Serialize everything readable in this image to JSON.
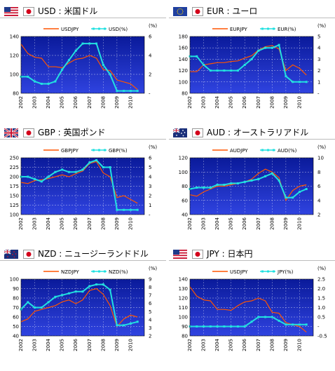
{
  "panels": [
    {
      "title": "USD : 米国ドル",
      "flag": "us-flag-icon",
      "chart_data": {
        "type": "line",
        "x": [
          2002,
          2002.5,
          2003,
          2003.5,
          2004,
          2004.5,
          2005,
          2005.5,
          2006,
          2006.5,
          2007,
          2007.5,
          2008,
          2008.5,
          2009,
          2009.5,
          2010,
          2010.5
        ],
        "series": [
          {
            "name": "USDJPY",
            "axis": "left",
            "color": "#ff5500",
            "values": [
              132,
              122,
              118,
              117,
              108,
              108,
              107,
              112,
              116,
              117,
              120,
              117,
              105,
              104,
              94,
              92,
              90,
              84
            ]
          },
          {
            "name": "USD(%)",
            "axis": "right",
            "color": "#22e0e0",
            "values": [
              1.75,
              1.75,
              1.25,
              1.0,
              1.0,
              1.25,
              2.5,
              3.5,
              4.5,
              5.25,
              5.25,
              5.25,
              3.0,
              2.0,
              0.25,
              0.25,
              0.25,
              0.25
            ]
          }
        ],
        "ylim": [
          80,
          140
        ],
        "yticks": [
          80,
          100,
          120,
          140
        ],
        "ylim_right": [
          0,
          6
        ],
        "yticks_right": [
          "-",
          "2",
          "4",
          "6"
        ],
        "xticks": [
          "2002",
          "2003",
          "2004",
          "2005",
          "2006",
          "2007",
          "2008",
          "2009",
          "2010"
        ]
      }
    },
    {
      "title": "EUR : ユーロ",
      "flag": "eu-flag-icon",
      "chart_data": {
        "type": "line",
        "x": [
          2002,
          2002.5,
          2003,
          2003.5,
          2004,
          2004.5,
          2005,
          2005.5,
          2006,
          2006.5,
          2007,
          2007.5,
          2008,
          2008.5,
          2009,
          2009.5,
          2010,
          2010.5
        ],
        "series": [
          {
            "name": "EURJPY",
            "axis": "left",
            "color": "#ff5500",
            "values": [
              118,
              118,
              130,
              132,
              134,
              134,
              136,
              137,
              142,
              146,
              156,
              162,
              164,
              158,
              120,
              130,
              124,
              112
            ]
          },
          {
            "name": "EUR(%)",
            "axis": "right",
            "color": "#22e0e0",
            "values": [
              3.25,
              3.25,
              2.5,
              2.0,
              2.0,
              2.0,
              2.0,
              2.0,
              2.5,
              3.0,
              3.75,
              4.0,
              4.0,
              4.25,
              1.5,
              1.0,
              1.0,
              1.0
            ]
          }
        ],
        "ylim": [
          80,
          180
        ],
        "yticks": [
          80,
          100,
          120,
          140,
          160,
          180
        ],
        "ylim_right": [
          0,
          5
        ],
        "yticks_right": [
          "-",
          "1",
          "2",
          "3",
          "4",
          "5"
        ],
        "xticks": [
          "2002",
          "2003",
          "2004",
          "2005",
          "2006",
          "2007",
          "2008",
          "2009",
          "2010"
        ]
      }
    },
    {
      "title": "GBP : 英国ポンド",
      "flag": "uk-flag-icon",
      "chart_data": {
        "type": "line",
        "x": [
          2002,
          2002.5,
          2003,
          2003.5,
          2004,
          2004.5,
          2005,
          2005.5,
          2006,
          2006.5,
          2007,
          2007.5,
          2008,
          2008.5,
          2009,
          2009.5,
          2010,
          2010.5
        ],
        "series": [
          {
            "name": "GBPJPY",
            "axis": "left",
            "color": "#ff5500",
            "values": [
              185,
              182,
              190,
              192,
              195,
              200,
              205,
              200,
              208,
              215,
              235,
              240,
              210,
              200,
              145,
              150,
              140,
              130
            ]
          },
          {
            "name": "GBP(%)",
            "axis": "right",
            "color": "#22e0e0",
            "values": [
              4.0,
              4.0,
              3.75,
              3.5,
              4.0,
              4.5,
              4.75,
              4.5,
              4.5,
              4.75,
              5.5,
              5.75,
              5.0,
              5.0,
              0.5,
              0.5,
              0.5,
              0.5
            ]
          }
        ],
        "ylim": [
          100,
          250
        ],
        "yticks": [
          100,
          125,
          150,
          175,
          200,
          225,
          250
        ],
        "ylim_right": [
          0,
          6
        ],
        "yticks_right": [
          "-",
          "1",
          "2",
          "3",
          "4",
          "5",
          "6"
        ],
        "xticks": [
          "2002",
          "2003",
          "2004",
          "2005",
          "2006",
          "2007",
          "2008",
          "2009",
          "2010"
        ]
      }
    },
    {
      "title": "AUD : オーストラリアドル",
      "flag": "au-flag-icon",
      "chart_data": {
        "type": "line",
        "x": [
          2002,
          2002.5,
          2003,
          2003.5,
          2004,
          2004.5,
          2005,
          2005.5,
          2006,
          2006.5,
          2007,
          2007.5,
          2008,
          2008.5,
          2009,
          2009.5,
          2010,
          2010.5
        ],
        "series": [
          {
            "name": "AUDJPY",
            "axis": "left",
            "color": "#ff5500",
            "values": [
              68,
              66,
              72,
              76,
              80,
              80,
              82,
              84,
              86,
              90,
              98,
              104,
              100,
              92,
              60,
              74,
              80,
              82
            ]
          },
          {
            "name": "AUD(%)",
            "axis": "right",
            "color": "#22e0e0",
            "values": [
              4.5,
              4.75,
              4.75,
              4.75,
              5.25,
              5.25,
              5.5,
              5.5,
              5.75,
              6.0,
              6.25,
              6.75,
              7.25,
              6.0,
              3.0,
              3.0,
              4.0,
              4.5
            ]
          }
        ],
        "ylim": [
          40,
          120
        ],
        "yticks": [
          40,
          60,
          80,
          100,
          120
        ],
        "ylim_right": [
          0,
          10
        ],
        "yticks_right": [
          "2",
          "4",
          "6",
          "8",
          "10"
        ],
        "xticks": [
          "2002",
          "2003",
          "2004",
          "2005",
          "2006",
          "2007",
          "2008",
          "2009",
          "2010"
        ]
      }
    },
    {
      "title": "NZD : ニュージーランドドル",
      "flag": "nz-flag-icon",
      "chart_data": {
        "type": "line",
        "x": [
          2002,
          2002.5,
          2003,
          2003.5,
          2004,
          2004.5,
          2005,
          2005.5,
          2006,
          2006.5,
          2007,
          2007.5,
          2008,
          2008.5,
          2009,
          2009.5,
          2010,
          2010.5
        ],
        "series": [
          {
            "name": "NZDJPY",
            "axis": "left",
            "color": "#ff5500",
            "values": [
              55,
              58,
              66,
              68,
              70,
              72,
              76,
              78,
              74,
              78,
              88,
              90,
              84,
              72,
              50,
              58,
              62,
              60
            ]
          },
          {
            "name": "NZD(%)",
            "axis": "right",
            "color": "#22e0e0",
            "values": [
              4.75,
              5.75,
              5.0,
              5.0,
              5.75,
              6.5,
              6.75,
              7.0,
              7.25,
              7.25,
              8.0,
              8.25,
              8.25,
              7.5,
              2.5,
              2.5,
              2.75,
              3.0
            ]
          }
        ],
        "ylim": [
          40,
          100
        ],
        "yticks": [
          40,
          50,
          60,
          70,
          80,
          90,
          100
        ],
        "ylim_right": [
          1,
          9
        ],
        "yticks_right": [
          "2",
          "3",
          "4",
          "5",
          "6",
          "7",
          "8",
          "9"
        ],
        "xticks": [
          "2002",
          "2003",
          "2004",
          "2005",
          "2006",
          "2007",
          "2008",
          "2009",
          "2010"
        ]
      }
    },
    {
      "title": "JPY : 日本円",
      "flag": "us-flag-icon",
      "chart_data": {
        "type": "line",
        "x": [
          2002,
          2002.5,
          2003,
          2003.5,
          2004,
          2004.5,
          2005,
          2005.5,
          2006,
          2006.5,
          2007,
          2007.5,
          2008,
          2008.5,
          2009,
          2009.5,
          2010,
          2010.5
        ],
        "series": [
          {
            "name": "USDJPY",
            "axis": "left",
            "color": "#ff5500",
            "values": [
              132,
              122,
              118,
              117,
              108,
              108,
              107,
              112,
              116,
              117,
              120,
              117,
              105,
              104,
              94,
              92,
              90,
              84
            ]
          },
          {
            "name": "JPY(%)",
            "axis": "right",
            "color": "#22e0e0",
            "values": [
              0,
              0,
              0,
              0,
              0,
              0,
              0,
              0,
              0.0,
              0.25,
              0.5,
              0.5,
              0.5,
              0.3,
              0.1,
              0.1,
              0.1,
              0.1
            ]
          }
        ],
        "ylim": [
          80,
          140
        ],
        "yticks": [
          80,
          90,
          100,
          110,
          120,
          130,
          140
        ],
        "ylim_right": [
          -0.5,
          2.5
        ],
        "yticks_right": [
          "-0.5",
          "-",
          "0.5",
          "1.0",
          "1.5",
          "2.0",
          "2.5"
        ],
        "xticks": [
          "2002",
          "2003",
          "2004",
          "2005",
          "2006",
          "2007",
          "2008",
          "2009",
          "2010"
        ]
      }
    }
  ],
  "unit_label": "(%)"
}
